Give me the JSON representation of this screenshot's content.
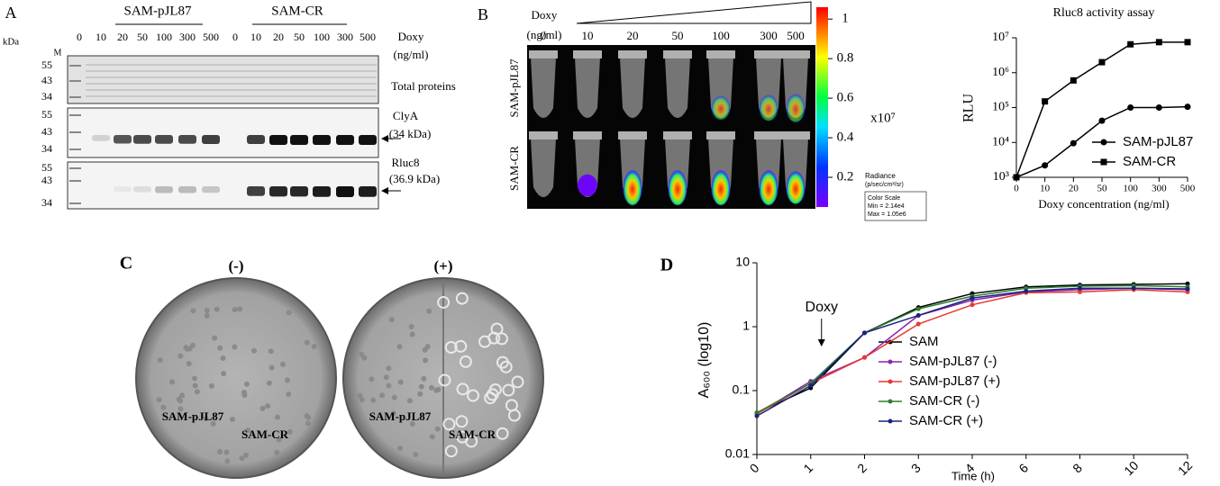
{
  "panel_a": {
    "label": "A",
    "kda": "kDa",
    "marker": "M",
    "mw": [
      [
        55,
        43,
        34
      ],
      [
        55,
        43,
        34
      ],
      [
        55,
        43,
        34
      ]
    ],
    "groups": [
      "SAM-pJL87",
      "SAM-CR"
    ],
    "lanes": [
      0,
      10,
      20,
      50,
      100,
      300,
      500,
      0,
      10,
      20,
      50,
      100,
      300,
      500
    ],
    "doxy": "Doxy",
    "unit": "(ng/ml)",
    "blots": [
      {
        "label": "Total proteins"
      },
      {
        "label": "ClyA",
        "sublabel": "(34 kDa)"
      },
      {
        "label": "Rluc8",
        "sublabel": "(36.9 kDa)"
      }
    ]
  },
  "panel_b": {
    "label": "B",
    "doxy": "Doxy",
    "unit": "(ng/ml)",
    "concentrations": [
      0,
      10,
      20,
      50,
      100,
      300,
      500
    ],
    "rows": [
      "SAM-pJL87",
      "SAM-CR"
    ],
    "colorbar": {
      "lim": [
        0.05,
        1.06
      ],
      "ticks": [
        1,
        0.8,
        0.6,
        0.4,
        0.2
      ],
      "multiplier": "x10⁷",
      "title": "Radiance",
      "unit": "(p/sec/cm²/sr)",
      "scale": "Color Scale",
      "min": "Min = 2.14e4",
      "max": "Max = 1.05e6"
    }
  },
  "panel_c": {
    "label": "C",
    "plates": [
      {
        "title": "(-)",
        "labels": [
          "SAM-pJL87",
          "SAM-CR"
        ]
      },
      {
        "title": "(+)",
        "labels": [
          "SAM-pJL87",
          "SAM-CR"
        ]
      }
    ]
  },
  "panel_d": {
    "label": "D"
  },
  "chart_data": [
    {
      "type": "line",
      "title": "Rluc8 activity assay",
      "x_label": "Doxy concentration (ng/ml)",
      "y_label": "RLU",
      "categories": [
        0,
        10,
        20,
        50,
        100,
        300,
        500
      ],
      "log_y": true,
      "ylim": [
        1000,
        10000000
      ],
      "yticks": [
        {
          "value": 1000,
          "label": "10³"
        },
        {
          "value": 10000,
          "label": "10⁴"
        },
        {
          "value": 100000,
          "label": "10⁵"
        },
        {
          "value": 1000000,
          "label": "10⁶"
        },
        {
          "value": 10000000,
          "label": "10⁷"
        }
      ],
      "series": [
        {
          "name": "SAM-pJL87",
          "color": "#000000",
          "marker": "circle",
          "values": [
            1000,
            2200,
            9500,
            42000,
            100000,
            100000,
            105000
          ]
        },
        {
          "name": "SAM-CR",
          "color": "#000000",
          "marker": "square",
          "values": [
            1000,
            150000,
            600000,
            2000000,
            6500000,
            7500000,
            7500000
          ]
        }
      ]
    },
    {
      "type": "line",
      "x_label": "Time (h)",
      "y_label": "A₆₀₀ (log10)",
      "annotation": "Doxy",
      "categories": [
        0,
        1,
        2,
        3,
        4,
        6,
        8,
        10,
        12
      ],
      "log_y": true,
      "ylim": [
        0.01,
        10
      ],
      "yticks": [
        0.01,
        0.1,
        1,
        10
      ],
      "series": [
        {
          "name": "SAM",
          "color": "#000000",
          "values": [
            0.045,
            0.11,
            0.8,
            2.0,
            3.3,
            4.2,
            4.5,
            4.6,
            4.7
          ]
        },
        {
          "name": "SAM-pJL87 (-)",
          "color": "#8e24aa",
          "values": [
            0.043,
            0.14,
            0.33,
            1.5,
            2.6,
            3.5,
            3.8,
            4.0,
            3.8
          ]
        },
        {
          "name": "SAM-pJL87 (+)",
          "color": "#e53935",
          "values": [
            0.043,
            0.13,
            0.33,
            1.1,
            2.2,
            3.4,
            3.5,
            3.8,
            3.5
          ]
        },
        {
          "name": "SAM-CR (-)",
          "color": "#2e7d32",
          "values": [
            0.045,
            0.13,
            0.8,
            1.9,
            3.0,
            4.0,
            4.3,
            4.4,
            4.2
          ]
        },
        {
          "name": "SAM-CR (+)",
          "color": "#1a237e",
          "values": [
            0.04,
            0.12,
            0.8,
            1.5,
            2.8,
            3.6,
            4.0,
            4.0,
            3.9
          ]
        }
      ]
    }
  ]
}
